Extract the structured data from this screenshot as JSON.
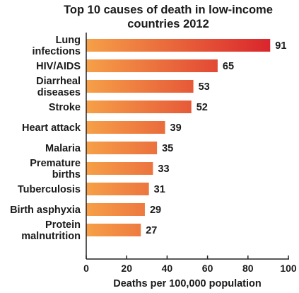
{
  "chart_data": {
    "type": "bar",
    "orientation": "horizontal",
    "title_lines": [
      "Top 10 causes of death in low-income",
      "countries 2012"
    ],
    "categories": [
      [
        "Lung",
        "infections"
      ],
      [
        "HIV/AIDS"
      ],
      [
        "Diarrheal",
        "diseases"
      ],
      [
        "Stroke"
      ],
      [
        "Heart attack"
      ],
      [
        "Malaria"
      ],
      [
        "Premature",
        "births"
      ],
      [
        "Tuberculosis"
      ],
      [
        "Birth asphyxia"
      ],
      [
        "Protein",
        "malnutrition"
      ]
    ],
    "values": [
      91,
      65,
      53,
      52,
      39,
      35,
      33,
      31,
      29,
      27
    ],
    "xlabel": "Deaths per 100,000 population",
    "xlim": [
      0,
      100
    ],
    "xticks": [
      0,
      20,
      40,
      60,
      80,
      100
    ],
    "grid": false,
    "bar_gradient": {
      "low": "#f6a048",
      "high": "#d7192a"
    },
    "axis_color": "#222222"
  }
}
